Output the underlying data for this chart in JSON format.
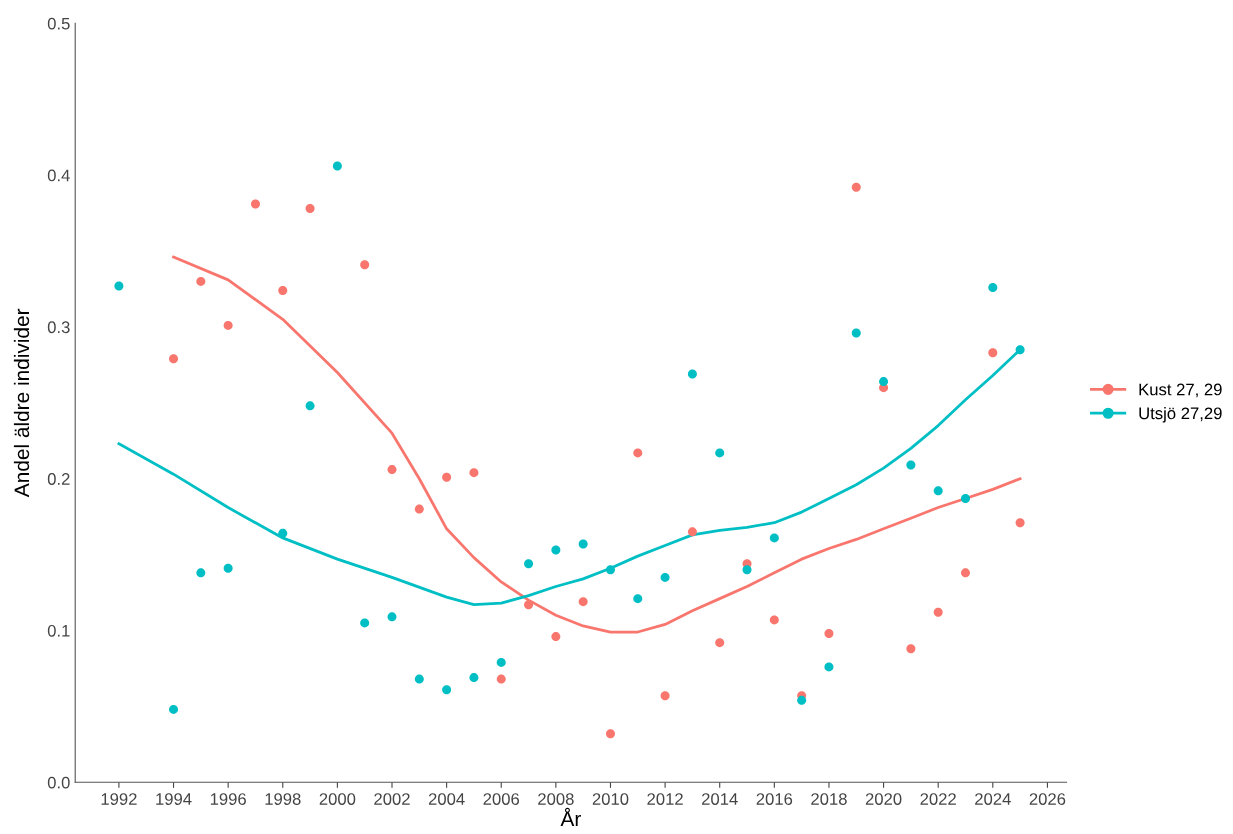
{
  "chart_data": {
    "type": "scatter",
    "xlabel": "År",
    "ylabel": "Andel äldre individer",
    "series": [
      {
        "name": "Kust 27, 29",
        "color": "#f8766d",
        "marker": "circle",
        "x": [
          1994,
          1995,
          1996,
          1997,
          1998,
          1999,
          2001,
          2002,
          2003,
          2004,
          2005,
          2006,
          2007,
          2008,
          2009,
          2010,
          2011,
          2012,
          2013,
          2014,
          2015,
          2016,
          2017,
          2018,
          2019,
          2020,
          2021,
          2022,
          2023,
          2024,
          2025
        ],
        "values": [
          0.279,
          0.33,
          0.301,
          0.381,
          0.324,
          0.378,
          0.341,
          0.206,
          0.18,
          0.201,
          0.204,
          0.068,
          0.117,
          0.096,
          0.119,
          0.032,
          0.217,
          0.057,
          0.165,
          0.092,
          0.144,
          0.107,
          0.057,
          0.098,
          0.392,
          0.26,
          0.088,
          0.112,
          0.138,
          0.283,
          0.171
        ]
      },
      {
        "name": "Utsjö 27,29",
        "color": "#00bfc4",
        "marker": "circle",
        "x": [
          1992,
          1994,
          1995,
          1996,
          1998,
          1999,
          2000,
          2001,
          2002,
          2003,
          2004,
          2005,
          2006,
          2007,
          2008,
          2009,
          2010,
          2011,
          2012,
          2013,
          2014,
          2015,
          2016,
          2017,
          2018,
          2019,
          2020,
          2021,
          2022,
          2023,
          2024,
          2025
        ],
        "values": [
          0.327,
          0.048,
          0.138,
          0.141,
          0.164,
          0.248,
          0.406,
          0.105,
          0.109,
          0.068,
          0.061,
          0.069,
          0.079,
          0.144,
          0.153,
          0.157,
          0.14,
          0.121,
          0.135,
          0.269,
          0.217,
          0.14,
          0.161,
          0.054,
          0.076,
          0.296,
          0.264,
          0.209,
          0.192,
          0.187,
          0.326,
          0.285
        ]
      },
      {
        "color": "#f8766d",
        "type": "line",
        "marker": "none",
        "x": [
          1994,
          1996,
          1998,
          2000,
          2002,
          2003,
          2004,
          2005,
          2006,
          2007,
          2008,
          2009,
          2010,
          2011,
          2012,
          2013,
          2014,
          2015,
          2016,
          2017,
          2018,
          2019,
          2020,
          2021,
          2022,
          2023,
          2024,
          2025
        ],
        "values": [
          0.346,
          0.331,
          0.305,
          0.27,
          0.23,
          0.2,
          0.167,
          0.148,
          0.132,
          0.12,
          0.11,
          0.103,
          0.099,
          0.099,
          0.104,
          0.113,
          0.121,
          0.129,
          0.138,
          0.147,
          0.154,
          0.16,
          0.167,
          0.174,
          0.181,
          0.187,
          0.193,
          0.2
        ]
      },
      {
        "color": "#00bfc4",
        "type": "line",
        "marker": "none",
        "x": [
          1992,
          1994,
          1996,
          1998,
          2000,
          2002,
          2004,
          2005,
          2006,
          2007,
          2008,
          2009,
          2010,
          2011,
          2012,
          2013,
          2014,
          2015,
          2016,
          2017,
          2018,
          2019,
          2020,
          2021,
          2022,
          2023,
          2024,
          2025
        ],
        "values": [
          0.223,
          0.203,
          0.181,
          0.161,
          0.147,
          0.135,
          0.122,
          0.117,
          0.118,
          0.123,
          0.129,
          0.134,
          0.141,
          0.149,
          0.156,
          0.163,
          0.166,
          0.168,
          0.171,
          0.178,
          0.187,
          0.196,
          0.207,
          0.22,
          0.235,
          0.252,
          0.268,
          0.285
        ]
      }
    ],
    "xlim": [
      1990.4,
      2026.7
    ],
    "xticks": [
      1992,
      1994,
      1996,
      1998,
      2000,
      2002,
      2004,
      2006,
      2008,
      2010,
      2012,
      2014,
      2016,
      2018,
      2020,
      2022,
      2024,
      2026
    ],
    "ylim": [
      0,
      0.5
    ],
    "yticks": [
      {
        "value": 0,
        "label": "0.0"
      },
      0.1,
      0.2,
      0.3,
      0.4,
      0.5
    ],
    "grid": false,
    "legend": "right",
    "line_style": "solid"
  }
}
